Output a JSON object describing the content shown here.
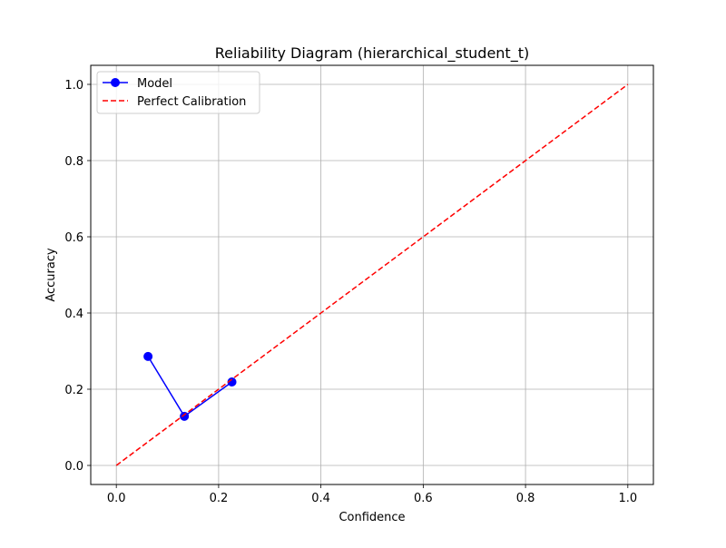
{
  "chart_data": {
    "type": "line",
    "title": "Reliability Diagram (hierarchical_student_t)",
    "xlabel": "Confidence",
    "ylabel": "Accuracy",
    "xlim": [
      -0.05,
      1.05
    ],
    "ylim": [
      -0.05,
      1.05
    ],
    "xticks": [
      0.0,
      0.2,
      0.4,
      0.6,
      0.8,
      1.0
    ],
    "yticks": [
      0.0,
      0.2,
      0.4,
      0.6,
      0.8,
      1.0
    ],
    "tick_labels_x": [
      "0.0",
      "0.2",
      "0.4",
      "0.6",
      "0.8",
      "1.0"
    ],
    "tick_labels_y": [
      "0.0",
      "0.2",
      "0.4",
      "0.6",
      "0.8",
      "1.0"
    ],
    "grid": true,
    "legend_position": "top-left",
    "series": [
      {
        "name": "Model",
        "color": "#0000ff",
        "style": "solid",
        "marker": "circle",
        "x": [
          0.062,
          0.133,
          0.226
        ],
        "y": [
          0.286,
          0.129,
          0.219
        ]
      },
      {
        "name": "Perfect Calibration",
        "color": "#ff0000",
        "style": "dashed",
        "marker": "none",
        "x": [
          0.0,
          1.0
        ],
        "y": [
          0.0,
          1.0
        ]
      }
    ]
  }
}
